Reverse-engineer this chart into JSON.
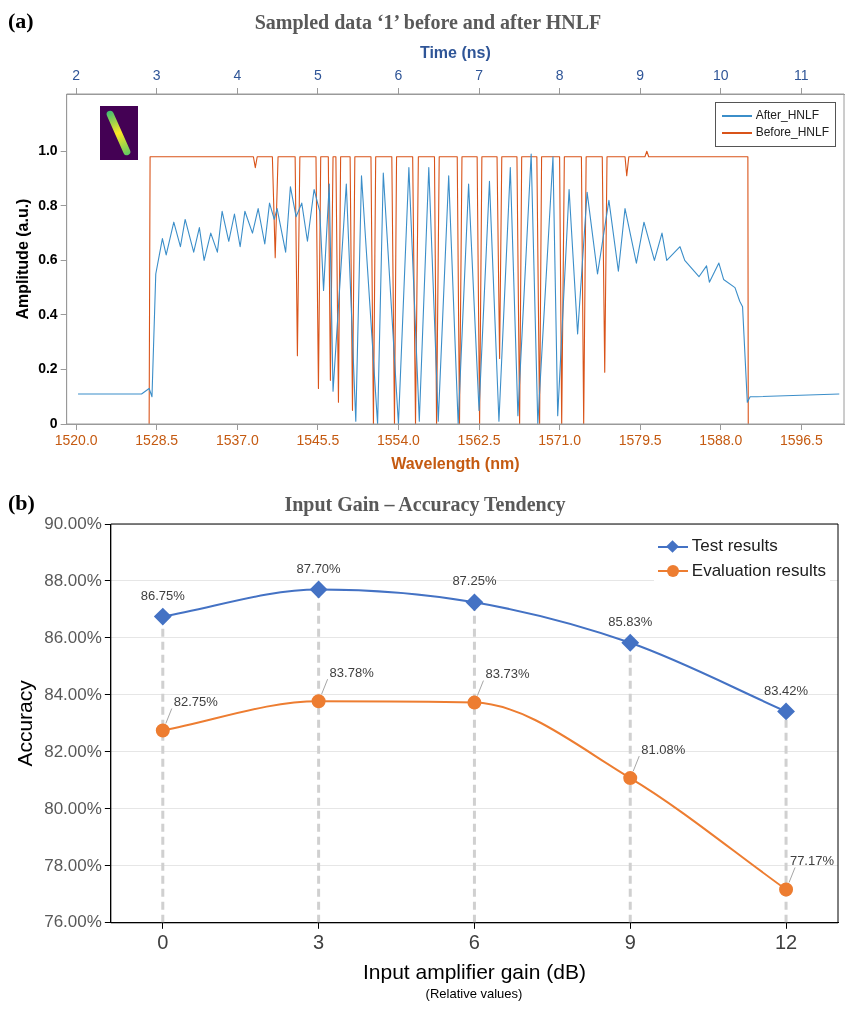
{
  "chart_data": [
    {
      "type": "line",
      "title": "Sampled data ‘1’ before and after HNLF",
      "xlabel": "Wavelength (nm)",
      "x2label": "Time (ns)",
      "ylabel": "Amplitude (a.u.)",
      "annotations": [
        "(a)"
      ],
      "xlim": [
        1519,
        1601
      ],
      "xticks": [
        {
          "value": 1520,
          "label": "1520.0"
        },
        1528.5,
        {
          "value": 1537,
          "label": "1537.0"
        },
        1545.5,
        {
          "value": 1554,
          "label": "1554.0"
        },
        1562.5,
        {
          "value": 1571,
          "label": "1571.0"
        },
        1579.5,
        {
          "value": 1588,
          "label": "1588.0"
        },
        1596.5
      ],
      "x2lim": [
        1.882,
        11.529
      ],
      "x2ticks": [
        2,
        3,
        4,
        5,
        6,
        7,
        8,
        9,
        10,
        11
      ],
      "ylim": [
        0,
        1.21
      ],
      "yticks": [
        0,
        0.2,
        0.4,
        0.6,
        0.8,
        {
          "value": 1,
          "label": "1.0"
        }
      ],
      "legend": "top right",
      "series": [
        {
          "name": "After_HNLF",
          "color": "#3b8ec9",
          "x": [
            1520.2,
            1526.9,
            1527.7,
            1528.0,
            1528.4,
            1529.1,
            1529.5,
            1530.3,
            1531.0,
            1531.5,
            1532.4,
            1533.0,
            1533.5,
            1534.2,
            1534.9,
            1535.4,
            1536.1,
            1536.7,
            1537.3,
            1537.8,
            1538.6,
            1539.2,
            1539.9,
            1540.4,
            1540.9,
            1541.2,
            1542.1,
            1542.6,
            1543.2,
            1543.8,
            1544.4,
            1545.1,
            1545.7,
            1546.1,
            1546.7,
            1547.1,
            1548.5,
            1549.5,
            1550.1,
            1551.8,
            1552.4,
            1554.0,
            1555.1,
            1556.2,
            1557.2,
            1558.2,
            1559.3,
            1560.3,
            1561.4,
            1562.5,
            1563.6,
            1564.6,
            1565.8,
            1566.6,
            1568.0,
            1568.7,
            1570.3,
            1570.8,
            1572.0,
            1572.9,
            1573.9,
            1575.0,
            1576.2,
            1577.2,
            1577.9,
            1579.1,
            1579.9,
            1581.0,
            1581.8,
            1582.3,
            1583.7,
            1584.2,
            1585.7,
            1586.5,
            1586.8,
            1587.8,
            1588.3,
            1589.5,
            1590.0,
            1590.3,
            1590.8,
            1591.1,
            1591.8,
            1600.5
          ],
          "values": [
            0.11,
            0.11,
            0.13,
            0.1,
            0.55,
            0.68,
            0.62,
            0.74,
            0.65,
            0.75,
            0.63,
            0.72,
            0.6,
            0.7,
            0.63,
            0.78,
            0.67,
            0.77,
            0.65,
            0.78,
            0.7,
            0.79,
            0.66,
            0.81,
            0.75,
            0.79,
            0.63,
            0.87,
            0.76,
            0.81,
            0.67,
            0.86,
            0.78,
            0.49,
            0.88,
            0.12,
            0.88,
            0.01,
            0.91,
            0.0,
            0.92,
            0.0,
            0.94,
            0.01,
            0.94,
            0.01,
            0.91,
            0.0,
            0.88,
            0.05,
            0.89,
            0.01,
            0.94,
            0.03,
            0.99,
            0.0,
            0.98,
            0.03,
            0.86,
            0.33,
            0.85,
            0.55,
            0.82,
            0.56,
            0.79,
            0.59,
            0.74,
            0.6,
            0.7,
            0.6,
            0.65,
            0.6,
            0.54,
            0.58,
            0.52,
            0.59,
            0.53,
            0.5,
            0.45,
            0.43,
            0.08,
            0.1,
            0.1,
            0.11
          ]
        },
        {
          "name": "Before_HNLF",
          "color": "#d95319",
          "x": [
            1527.7,
            1527.8,
            1538.7,
            1538.9,
            1539.1,
            1540.7,
            1541.0,
            1541.3,
            1543.1,
            1543.34,
            1543.6,
            1545.3,
            1545.56,
            1545.8,
            1546.6,
            1546.82,
            1547.1,
            1547.4,
            1547.67,
            1547.9,
            1548.9,
            1549.15,
            1549.4,
            1551.1,
            1551.36,
            1551.6,
            1553.3,
            1553.58,
            1553.8,
            1555.5,
            1555.8,
            1556.1,
            1557.8,
            1558.02,
            1558.3,
            1560.2,
            1560.44,
            1560.7,
            1562.3,
            1562.56,
            1562.8,
            1564.4,
            1564.67,
            1564.9,
            1566.5,
            1566.78,
            1567.0,
            1568.6,
            1568.89,
            1569.1,
            1571.0,
            1571.22,
            1571.5,
            1573.3,
            1573.54,
            1573.8,
            1575.5,
            1575.76,
            1576.0,
            1577.9,
            1578.08,
            1578.3,
            1580.0,
            1580.2,
            1580.4,
            1590.86,
            1590.9
          ],
          "values": [
            0,
            0.98,
            0.98,
            0.94,
            0.98,
            0.98,
            0.61,
            0.98,
            0.98,
            0.25,
            0.98,
            0.98,
            0.13,
            0.98,
            0.98,
            0.16,
            0.98,
            0.98,
            0.08,
            0.98,
            0.98,
            0.05,
            0.98,
            0.98,
            0,
            0.98,
            0.98,
            0,
            0.98,
            0.98,
            0,
            0.98,
            0.98,
            0,
            0.98,
            0.98,
            0,
            0.98,
            0.98,
            0,
            0.98,
            0.98,
            0.24,
            0.98,
            0.98,
            0,
            0.98,
            0.98,
            0,
            0.98,
            0.98,
            0,
            0.98,
            0.98,
            0,
            0.98,
            0.98,
            0.19,
            0.98,
            0.98,
            0.91,
            0.98,
            0.98,
            1.0,
            0.98,
            0.98,
            0
          ]
        }
      ]
    },
    {
      "type": "line",
      "title": "Input Gain – Accuracy Tendency",
      "xlabel": "Input amplifier gain (dB)",
      "ylabel": "Accuracy",
      "annotations": [
        "(b)",
        "(Relative values)"
      ],
      "x": [
        0,
        3,
        6,
        9,
        12
      ],
      "xlim": [
        -1,
        13
      ],
      "xticks": [
        0,
        3,
        6,
        9,
        12
      ],
      "ylim": [
        76,
        90
      ],
      "yticks": [
        {
          "value": 76,
          "label": "76.00%"
        },
        {
          "value": 78,
          "label": "78.00%"
        },
        {
          "value": 80,
          "label": "80.00%"
        },
        {
          "value": 82,
          "label": "82.00%"
        },
        {
          "value": 84,
          "label": "84.00%"
        },
        {
          "value": 86,
          "label": "86.00%"
        },
        {
          "value": 88,
          "label": "88.00%"
        },
        {
          "value": 90,
          "label": "90.00%"
        }
      ],
      "grid": true,
      "legend": "top right",
      "ref_lines": [
        {
          "axis": "x",
          "value": 0,
          "line_style": "dashed",
          "color": "#d0d0d0"
        },
        {
          "axis": "x",
          "value": 3,
          "line_style": "dashed",
          "color": "#d0d0d0"
        },
        {
          "axis": "x",
          "value": 6,
          "line_style": "dashed",
          "color": "#d0d0d0"
        },
        {
          "axis": "x",
          "value": 9,
          "line_style": "dashed",
          "color": "#d0d0d0"
        },
        {
          "axis": "x",
          "value": 12,
          "line_style": "dashed",
          "color": "#d0d0d0"
        }
      ],
      "series": [
        {
          "name": "Test results",
          "color": "#4472c4",
          "marker": "diamond",
          "values": [
            86.75,
            87.7,
            87.25,
            85.83,
            83.42
          ],
          "value_labels": [
            "86.75%",
            "87.70%",
            "87.25%",
            "85.83%",
            "83.42%"
          ]
        },
        {
          "name": "Evaluation results",
          "color": "#ed7d31",
          "marker": "circle",
          "values": [
            82.75,
            83.78,
            83.73,
            81.08,
            77.17
          ],
          "value_labels": [
            "82.75%",
            "83.78%",
            "83.73%",
            "81.08%",
            "77.17%"
          ]
        }
      ]
    }
  ]
}
